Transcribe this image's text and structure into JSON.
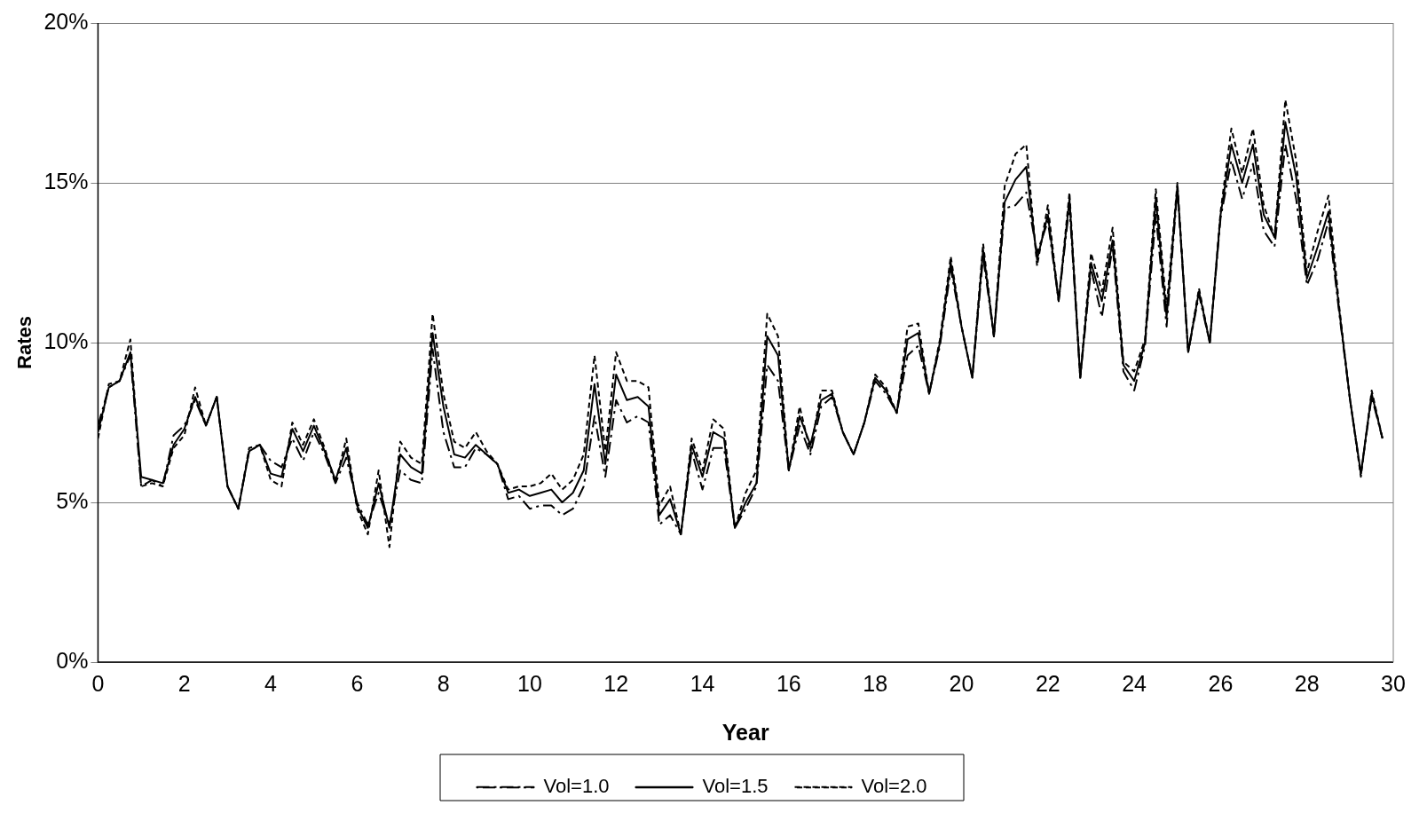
{
  "chart_data": {
    "type": "line",
    "xlabel": "Year",
    "ylabel": "Rates",
    "x": [
      0,
      0.25,
      0.5,
      0.75,
      1,
      1.25,
      1.5,
      1.75,
      2,
      2.25,
      2.5,
      2.75,
      3,
      3.25,
      3.5,
      3.75,
      4,
      4.25,
      4.5,
      4.75,
      5,
      5.25,
      5.5,
      5.75,
      6,
      6.25,
      6.5,
      6.75,
      7,
      7.25,
      7.5,
      7.75,
      8,
      8.25,
      8.5,
      8.75,
      9,
      9.25,
      9.5,
      9.75,
      10,
      10.25,
      10.5,
      10.75,
      11,
      11.25,
      11.5,
      11.75,
      12,
      12.25,
      12.5,
      12.75,
      13,
      13.25,
      13.5,
      13.75,
      14,
      14.25,
      14.5,
      14.75,
      15,
      15.25,
      15.5,
      15.75,
      16,
      16.25,
      16.5,
      16.75,
      17,
      17.25,
      17.5,
      17.75,
      18,
      18.25,
      18.5,
      18.75,
      19,
      19.25,
      19.5,
      19.75,
      20,
      20.25,
      20.5,
      20.75,
      21,
      21.25,
      21.5,
      21.75,
      22,
      22.25,
      22.5,
      22.75,
      23,
      23.25,
      23.5,
      23.75,
      24,
      24.25,
      24.5,
      24.75,
      25,
      25.25,
      25.5,
      25.75,
      26,
      26.25,
      26.5,
      26.75,
      27,
      27.25,
      27.5,
      27.75,
      28,
      28.25,
      28.5,
      28.75,
      29,
      29.25,
      29.5,
      29.75
    ],
    "series": [
      {
        "name": "Vol=1.0",
        "color": "#000000",
        "line_style": "dashdot",
        "values": [
          7.4,
          8.6,
          8.8,
          9.6,
          5.5,
          5.7,
          5.5,
          7.1,
          7.4,
          8.2,
          7.4,
          8.3,
          5.5,
          4.8,
          6.6,
          6.8,
          6.3,
          6.1,
          7.0,
          6.3,
          7.2,
          6.5,
          5.6,
          6.4,
          5.0,
          4.3,
          5.3,
          4.3,
          6.0,
          5.7,
          5.6,
          9.8,
          7.2,
          6.1,
          6.1,
          6.7,
          6.5,
          6.2,
          5.1,
          5.2,
          4.8,
          4.9,
          4.9,
          4.6,
          4.8,
          5.5,
          7.7,
          5.8,
          8.2,
          7.5,
          7.7,
          7.5,
          4.3,
          4.6,
          4.0,
          6.6,
          5.4,
          6.7,
          6.7,
          4.2,
          4.8,
          5.5,
          9.3,
          8.8,
          6.0,
          7.4,
          6.5,
          8.0,
          8.3,
          7.2,
          6.5,
          7.5,
          8.8,
          8.4,
          7.8,
          9.6,
          9.9,
          8.4,
          9.9,
          12.3,
          10.5,
          8.9,
          12.7,
          10.2,
          14.2,
          14.3,
          14.7,
          12.8,
          13.8,
          11.3,
          14.3,
          8.9,
          12.3,
          10.8,
          13.0,
          9.1,
          8.5,
          9.9,
          14.0,
          10.5,
          14.8,
          9.7,
          11.5,
          10.0,
          13.9,
          15.7,
          14.5,
          15.6,
          13.5,
          13.0,
          16.2,
          14.5,
          11.8,
          12.6,
          13.8,
          10.9,
          8.2,
          5.9,
          8.3,
          7.0
        ]
      },
      {
        "name": "Vol=1.5",
        "color": "#000000",
        "line_style": "solid",
        "values": [
          7.2,
          8.6,
          8.8,
          9.7,
          5.8,
          5.7,
          5.6,
          6.8,
          7.3,
          8.3,
          7.4,
          8.3,
          5.5,
          4.8,
          6.6,
          6.8,
          5.9,
          5.8,
          7.3,
          6.6,
          7.4,
          6.6,
          5.7,
          6.7,
          4.9,
          4.2,
          5.6,
          4.2,
          6.5,
          6.1,
          5.9,
          10.3,
          8.0,
          6.5,
          6.4,
          6.8,
          6.5,
          6.2,
          5.3,
          5.4,
          5.2,
          5.3,
          5.4,
          5.0,
          5.3,
          6.0,
          8.7,
          6.2,
          9.0,
          8.2,
          8.3,
          8.0,
          4.6,
          5.1,
          4.0,
          6.8,
          5.8,
          7.2,
          7.0,
          4.2,
          5.0,
          5.6,
          10.2,
          9.6,
          6.0,
          7.7,
          6.8,
          8.2,
          8.4,
          7.2,
          6.5,
          7.5,
          8.9,
          8.5,
          7.8,
          10.1,
          10.3,
          8.4,
          10.0,
          12.5,
          10.5,
          8.9,
          12.9,
          10.2,
          14.4,
          15.1,
          15.5,
          12.6,
          14.0,
          11.3,
          14.5,
          8.9,
          12.5,
          11.3,
          13.2,
          9.3,
          8.8,
          10.0,
          14.5,
          10.8,
          14.9,
          9.7,
          11.6,
          10.0,
          14.0,
          16.2,
          15.0,
          16.2,
          14.0,
          13.3,
          16.9,
          15.2,
          12.0,
          13.0,
          14.1,
          11.0,
          8.2,
          5.9,
          8.4,
          7.0
        ]
      },
      {
        "name": "Vol=2.0",
        "color": "#000000",
        "line_style": "dashed",
        "values": [
          7.0,
          8.7,
          8.8,
          10.1,
          5.5,
          5.6,
          5.5,
          6.7,
          7.1,
          8.6,
          7.4,
          8.3,
          5.5,
          4.8,
          6.7,
          6.8,
          5.7,
          5.5,
          7.5,
          6.8,
          7.6,
          6.7,
          5.6,
          7.0,
          4.8,
          4.0,
          6.0,
          3.6,
          6.9,
          6.4,
          6.2,
          10.9,
          8.4,
          6.9,
          6.7,
          7.2,
          6.6,
          6.2,
          5.4,
          5.5,
          5.5,
          5.6,
          5.9,
          5.4,
          5.7,
          6.5,
          9.6,
          6.6,
          9.7,
          8.8,
          8.8,
          8.6,
          4.9,
          5.5,
          4.0,
          7.0,
          6.0,
          7.6,
          7.3,
          4.2,
          5.3,
          6.0,
          10.9,
          10.2,
          6.0,
          8.0,
          6.6,
          8.5,
          8.5,
          7.2,
          6.5,
          7.5,
          9.0,
          8.6,
          7.8,
          10.5,
          10.6,
          8.4,
          10.1,
          12.7,
          10.5,
          8.9,
          13.1,
          10.2,
          14.9,
          15.9,
          16.2,
          12.4,
          14.3,
          11.3,
          14.7,
          8.9,
          12.8,
          11.6,
          13.6,
          9.4,
          9.1,
          10.1,
          14.8,
          11.1,
          15.0,
          9.7,
          11.7,
          10.0,
          14.1,
          16.7,
          15.3,
          16.7,
          14.3,
          13.3,
          17.6,
          15.7,
          12.2,
          13.5,
          14.6,
          11.1,
          8.2,
          5.8,
          8.5,
          7.0
        ]
      }
    ],
    "xlim": [
      0,
      30
    ],
    "xticks": [
      0,
      2,
      4,
      6,
      8,
      10,
      12,
      14,
      16,
      18,
      20,
      22,
      24,
      26,
      28,
      30
    ],
    "ylim": [
      0,
      20
    ],
    "yticks": [
      {
        "value": 0,
        "label": "0%"
      },
      {
        "value": 5,
        "label": "5%"
      },
      {
        "value": 10,
        "label": "10%"
      },
      {
        "value": 15,
        "label": "15%"
      },
      {
        "value": 20,
        "label": "20%"
      }
    ],
    "grid": "y",
    "legend": "bottom",
    "marker": "none"
  }
}
